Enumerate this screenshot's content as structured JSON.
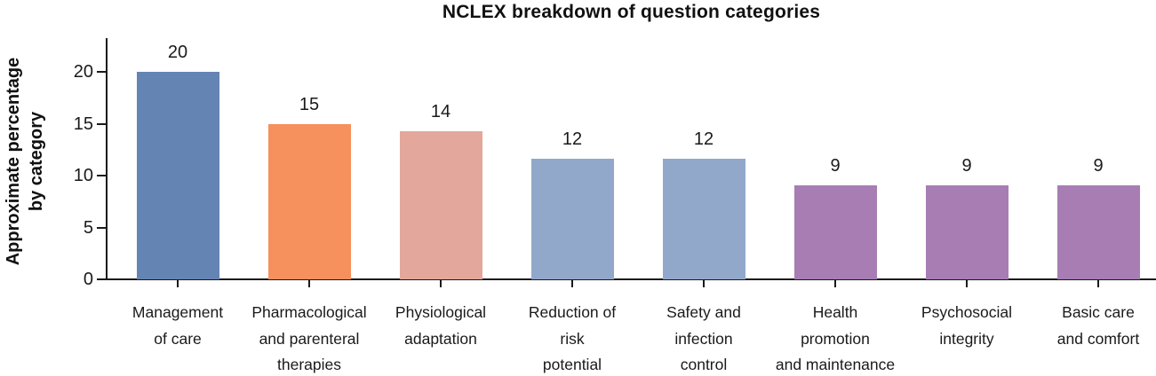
{
  "chart_data": {
    "type": "bar",
    "title": "NCLEX breakdown of question categories",
    "ylabel": "Approximate percentage by category",
    "ylabel_lines": [
      "Approximate percentage",
      "by category"
    ],
    "xlabel": "",
    "categories": [
      "Management of care",
      "Pharmacological and parenteral therapies",
      "Physiological adaptation",
      "Reduction of risk potential",
      "Safety and infection control",
      "Health promotion and maintenance",
      "Psychosocial integrity",
      "Basic care and comfort"
    ],
    "category_label_lines": [
      [
        "Management",
        "of care"
      ],
      [
        "Pharmacological",
        "and parenteral",
        "therapies"
      ],
      [
        "Physiological",
        "adaptation"
      ],
      [
        "Reduction of",
        "risk",
        "potential"
      ],
      [
        "Safety and",
        "infection",
        "control"
      ],
      [
        "Health",
        "promotion",
        "and maintenance"
      ],
      [
        "Psychosocial",
        "integrity"
      ],
      [
        "Basic care",
        "and comfort"
      ]
    ],
    "values": [
      20,
      15,
      14,
      12,
      12,
      9,
      9,
      9
    ],
    "values_as_drawn": [
      20,
      15,
      14.3,
      11.6,
      11.6,
      9.1,
      9.1,
      9.1
    ],
    "bar_colors": [
      "#6484b4",
      "#f6905c",
      "#e3a79b",
      "#91a8ca",
      "#91a8ca",
      "#a87db3",
      "#a87db3",
      "#a87db3"
    ],
    "yticks": [
      0,
      5,
      10,
      15,
      20
    ],
    "ylim": [
      0,
      23.2
    ],
    "grid": false,
    "legend": null,
    "axis_color": "#1a1a1a",
    "text_color": "#1a1a1a",
    "title_color": "#111111"
  }
}
